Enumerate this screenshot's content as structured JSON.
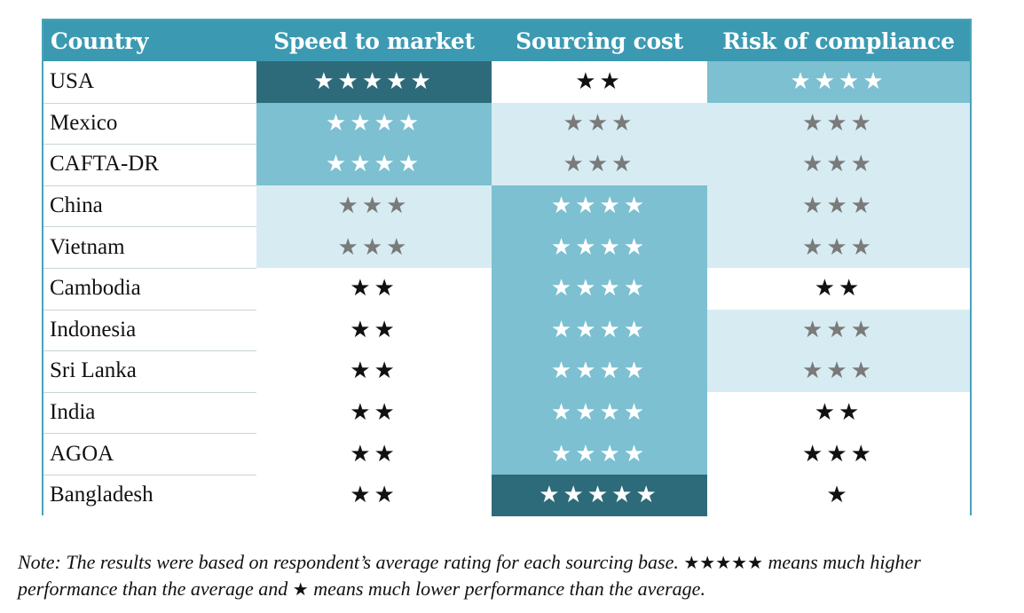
{
  "chart_data": {
    "type": "table",
    "columns": [
      "Country",
      "Speed to market",
      "Sourcing cost",
      "Risk of compliance"
    ],
    "rows": [
      {
        "country": "USA",
        "speed": 5,
        "cost": 2,
        "risk": 4
      },
      {
        "country": "Mexico",
        "speed": 4,
        "cost": 3,
        "risk": 3
      },
      {
        "country": "CAFTA-DR",
        "speed": 4,
        "cost": 3,
        "risk": 3
      },
      {
        "country": "China",
        "speed": 3,
        "cost": 4,
        "risk": 3
      },
      {
        "country": "Vietnam",
        "speed": 3,
        "cost": 4,
        "risk": 3
      },
      {
        "country": "Cambodia",
        "speed": 2,
        "cost": 4,
        "risk": 2
      },
      {
        "country": "Indonesia",
        "speed": 2,
        "cost": 4,
        "risk": 3
      },
      {
        "country": "Sri Lanka",
        "speed": 2,
        "cost": 4,
        "risk": 3
      },
      {
        "country": "India",
        "speed": 2,
        "cost": 4,
        "risk": 2
      },
      {
        "country": "AGOA",
        "speed": 2,
        "cost": 4,
        "risk": 3
      },
      {
        "country": "Bangladesh",
        "speed": 2,
        "cost": 5,
        "risk": 1
      }
    ],
    "risk_overrides": {
      "AGOA": "plain"
    },
    "rating_scale": [
      1,
      5
    ]
  },
  "styles": {
    "header_bg": "#3b9ab2",
    "header_text": "#ffffff",
    "fills": {
      "5": {
        "bg": "#2d6b7a",
        "star": "#ffffff"
      },
      "4": {
        "bg": "#7cc0d1",
        "star": "#ffffff"
      },
      "3": {
        "bg": "#d6ecf2",
        "star": "#7a7a7a"
      },
      "2": {
        "bg": "#ffffff",
        "star": "#111111"
      },
      "1": {
        "bg": "#ffffff",
        "star": "#111111"
      }
    },
    "plain": {
      "bg": "#ffffff",
      "star": "#111111"
    },
    "name_bg": "#ffffff",
    "grid_line": "#c9d4d8"
  },
  "note": {
    "part1": "Note: The results were based on respondent’s average rating for each sourcing base. ",
    "stars_high": "★★★★★",
    "part2": " means much higher performance than the average and ",
    "stars_low": "★",
    "part3": " means much lower performance than the average."
  },
  "icons": {
    "rating_star": "star-icon"
  }
}
